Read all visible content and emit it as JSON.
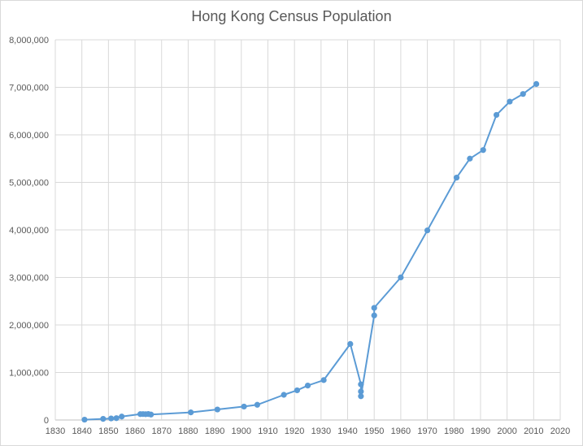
{
  "chart_data": {
    "type": "scatter",
    "title": "Hong Kong Census Population",
    "xlabel": "",
    "ylabel": "",
    "xlim": [
      1830,
      2020
    ],
    "ylim": [
      0,
      8000000
    ],
    "x_ticks": [
      "1830",
      "1840",
      "1850",
      "1860",
      "1870",
      "1880",
      "1890",
      "1900",
      "1910",
      "1920",
      "1930",
      "1940",
      "1950",
      "1960",
      "1970",
      "1980",
      "1990",
      "2000",
      "2010",
      "2020"
    ],
    "y_ticks": [
      "0",
      "1,000,000",
      "2,000,000",
      "3,000,000",
      "4,000,000",
      "5,000,000",
      "6,000,000",
      "7,000,000",
      "8,000,000"
    ],
    "grid": true,
    "legend": "none",
    "series": [
      {
        "color": "#5b9bd5",
        "points": [
          {
            "x": 1841,
            "y": 7450
          },
          {
            "x": 1848,
            "y": 24000
          },
          {
            "x": 1851,
            "y": 33000
          },
          {
            "x": 1853,
            "y": 39000
          },
          {
            "x": 1855,
            "y": 72600
          },
          {
            "x": 1862,
            "y": 124000
          },
          {
            "x": 1863,
            "y": 125000
          },
          {
            "x": 1864,
            "y": 122000
          },
          {
            "x": 1865,
            "y": 125500
          },
          {
            "x": 1866,
            "y": 115000
          },
          {
            "x": 1881,
            "y": 160400
          },
          {
            "x": 1891,
            "y": 221400
          },
          {
            "x": 1901,
            "y": 283000
          },
          {
            "x": 1906,
            "y": 320000
          },
          {
            "x": 1916,
            "y": 530000
          },
          {
            "x": 1921,
            "y": 625000
          },
          {
            "x": 1925,
            "y": 725000
          },
          {
            "x": 1931,
            "y": 840000
          },
          {
            "x": 1941,
            "y": 1600000
          },
          {
            "x": 1945,
            "y": 750000
          },
          {
            "x": 1945,
            "y": 600000
          },
          {
            "x": 1945,
            "y": 500000
          },
          {
            "x": 1950,
            "y": 2200000
          },
          {
            "x": 1950,
            "y": 2360000
          },
          {
            "x": 1960,
            "y": 3000000
          },
          {
            "x": 1970,
            "y": 3990000
          },
          {
            "x": 1981,
            "y": 5100000
          },
          {
            "x": 1986,
            "y": 5500000
          },
          {
            "x": 1991,
            "y": 5680000
          },
          {
            "x": 1996,
            "y": 6420000
          },
          {
            "x": 2001,
            "y": 6700000
          },
          {
            "x": 2006,
            "y": 6860000
          },
          {
            "x": 2011,
            "y": 7070000
          }
        ]
      }
    ]
  }
}
